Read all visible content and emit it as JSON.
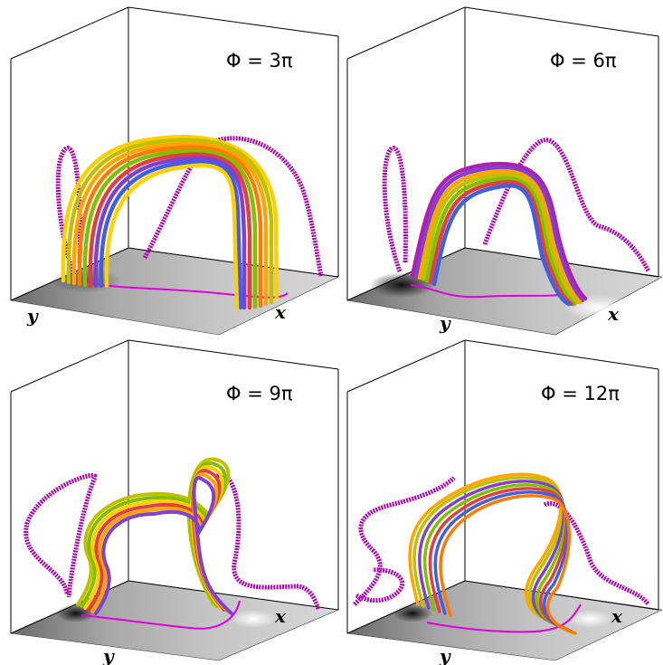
{
  "panels": [
    {
      "phi_label": "Φ = 3π",
      "x_axis_label": "x",
      "y_axis_label": "y"
    },
    {
      "phi_label": "Φ = 6π",
      "x_axis_label": "x",
      "y_axis_label": "y"
    },
    {
      "phi_label": "Φ = 9π",
      "x_axis_label": "x",
      "y_axis_label": "y"
    },
    {
      "phi_label": "Φ = 12π",
      "x_axis_label": "x",
      "y_axis_label": "y"
    }
  ],
  "colors": {
    "outer_field_line": "#b000b0",
    "footprint_line": "#e000e0",
    "box_edges": "#000000",
    "flux_rope_palette": [
      "#ffd000",
      "#ffa500",
      "#ff7a00",
      "#c0c000",
      "#80c000",
      "#e04040",
      "#8040d0",
      "#4060e0",
      "#30b0a0",
      "#b020b0"
    ]
  }
}
